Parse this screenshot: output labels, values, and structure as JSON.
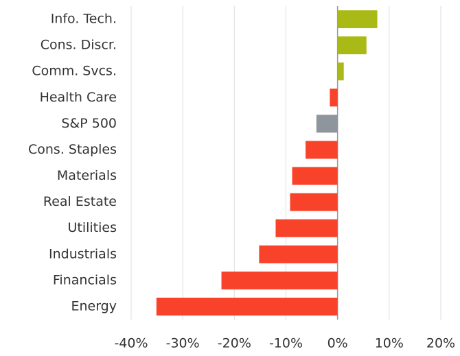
{
  "chart_data": {
    "type": "hbar",
    "categories": [
      "Info. Tech.",
      "Cons. Discr.",
      "Comm. Svcs.",
      "Health Care",
      "S&P 500",
      "Cons. Staples",
      "Materials",
      "Real Estate",
      "Utilities",
      "Industrials",
      "Financials",
      "Energy"
    ],
    "values": [
      7.7,
      5.6,
      1.2,
      -1.5,
      -4.1,
      -6.2,
      -8.8,
      -9.2,
      -12.0,
      -15.2,
      -22.5,
      -35.1
    ],
    "colors": [
      "#a9b915",
      "#a9b915",
      "#a9b915",
      "#f9422a",
      "#8e959c",
      "#f9422a",
      "#f9422a",
      "#f9422a",
      "#f9422a",
      "#f9422a",
      "#f9422a",
      "#f9422a"
    ],
    "xlim": [
      -40,
      20
    ],
    "xticks": [
      {
        "value": -40,
        "label": "-40%"
      },
      {
        "value": -30,
        "label": "-30%"
      },
      {
        "value": -20,
        "label": "-20%"
      },
      {
        "value": -10,
        "label": "-10%"
      },
      {
        "value": 0,
        "label": "0%"
      },
      {
        "value": 10,
        "label": "10%"
      },
      {
        "value": 20,
        "label": "20%"
      }
    ],
    "grid": true
  }
}
